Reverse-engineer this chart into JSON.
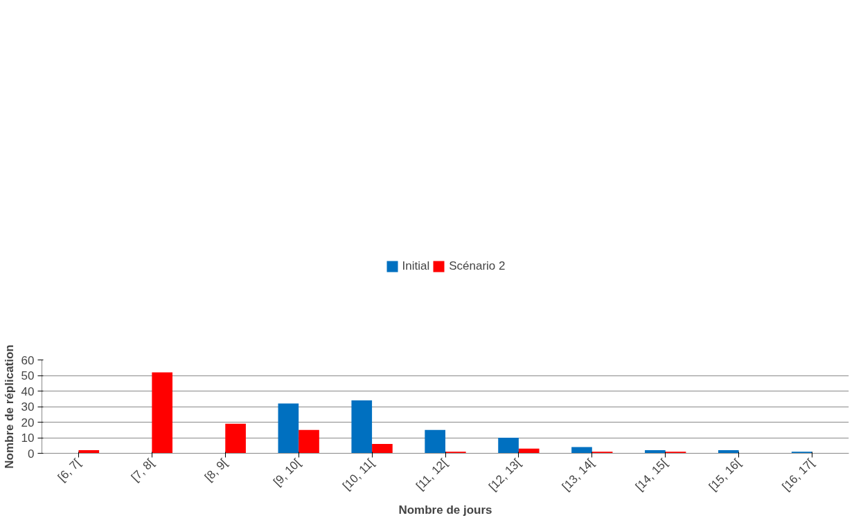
{
  "chart_data": {
    "type": "bar",
    "xlabel": "Nombre de jours",
    "ylabel": "Nombre de réplication",
    "categories": [
      "[6, 7[",
      "[7, 8[",
      "[8, 9[",
      "[9, 10[",
      "[10, 11[",
      "[11, 12[",
      "[12, 13[",
      "[13, 14[",
      "[14, 15[",
      "[15, 16[",
      "[16, 17["
    ],
    "series": [
      {
        "name": "Initial",
        "color": "#0070c0",
        "values": [
          0,
          0,
          0,
          32,
          34,
          15,
          10,
          4,
          2,
          2,
          1
        ]
      },
      {
        "name": "Scénario 2",
        "color": "#ff0000",
        "values": [
          2,
          52,
          19,
          15,
          6,
          1,
          3,
          1,
          1,
          0,
          0
        ]
      }
    ],
    "ylim": [
      0,
      60
    ],
    "yticks": [
      0,
      10,
      20,
      30,
      40,
      50,
      60
    ],
    "grid": "y",
    "legend": "top"
  }
}
